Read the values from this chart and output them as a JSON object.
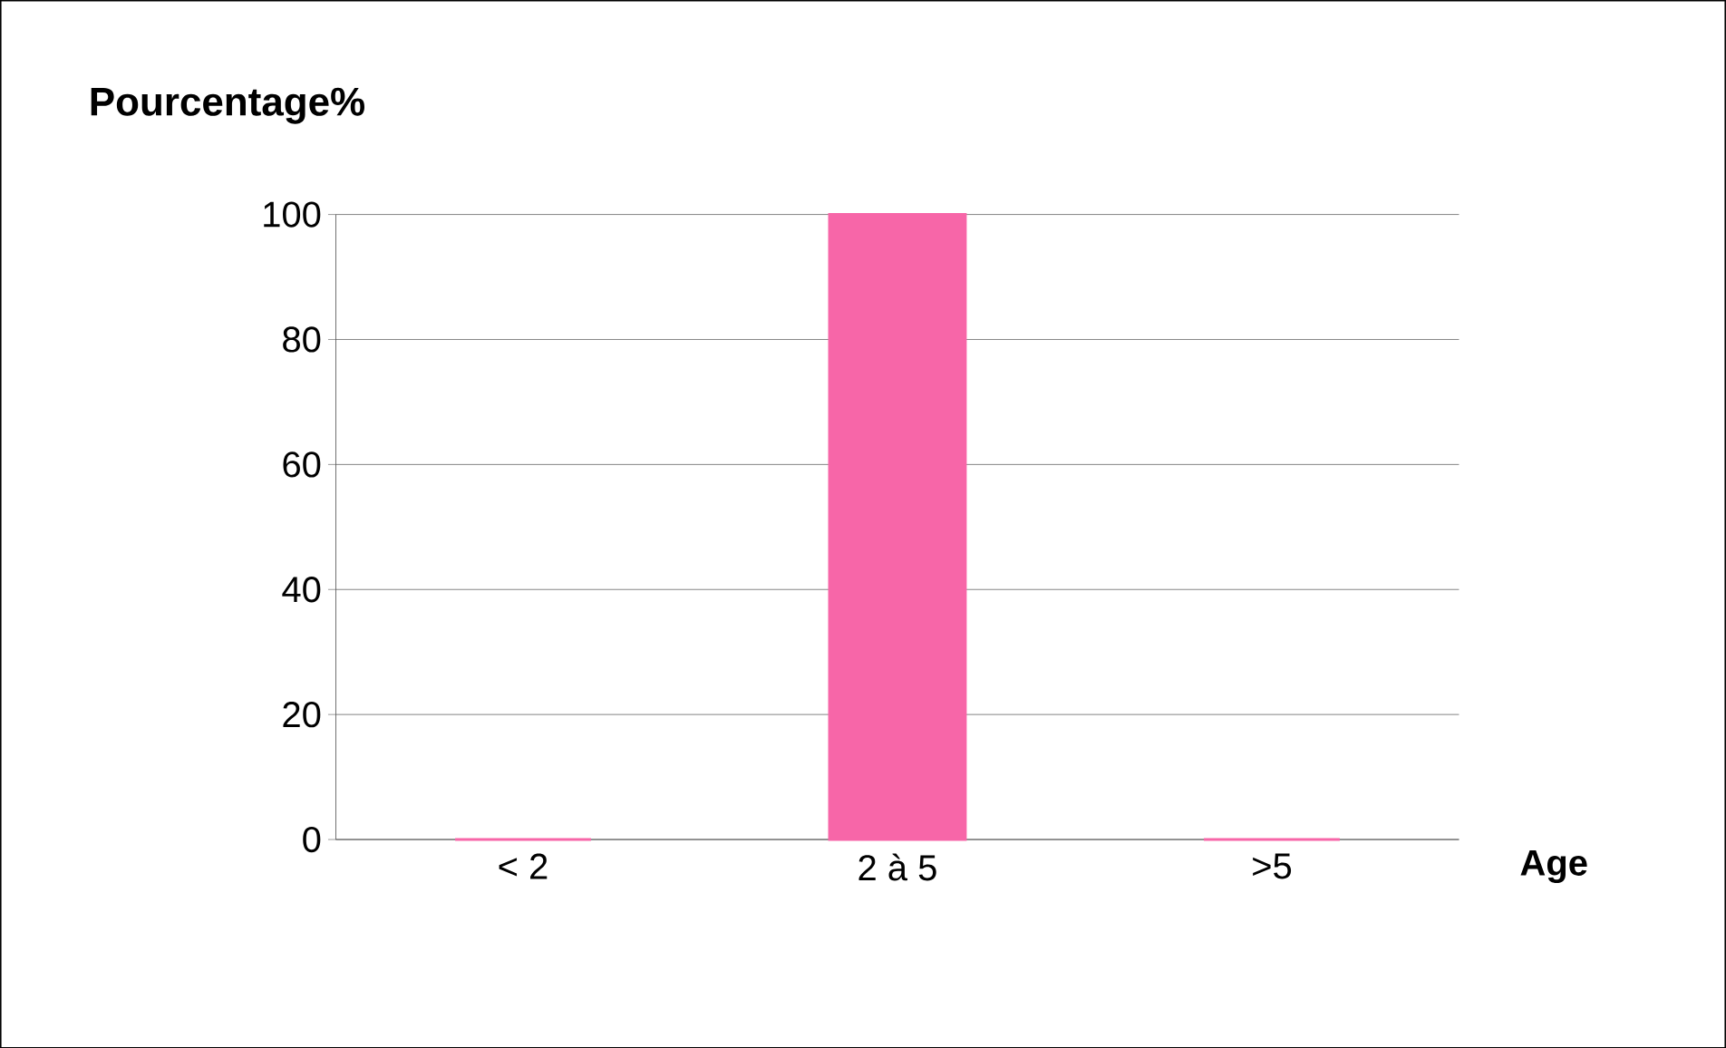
{
  "chart_data": {
    "type": "bar",
    "xlabel": "Age",
    "ylabel": "Pourcentage%",
    "categories": [
      "< 2",
      "2 à 5",
      ">5"
    ],
    "values": [
      0,
      100,
      0
    ],
    "color": "#f766a8",
    "ylim": [
      0,
      100
    ],
    "yticks": [
      0,
      20,
      40,
      60,
      80,
      100
    ],
    "grid": "y"
  }
}
